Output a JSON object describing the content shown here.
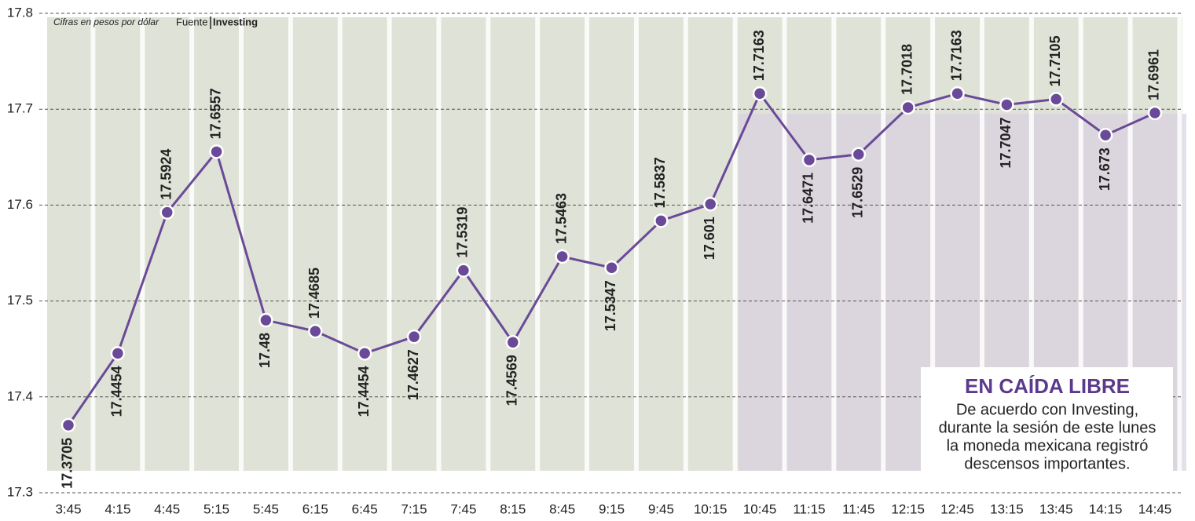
{
  "chart_data": {
    "type": "line",
    "subtitle": "Cifras en pesos por dólar",
    "source_label": "Fuente",
    "source": "Investing",
    "categories": [
      "3:45",
      "4:15",
      "4:45",
      "5:15",
      "5:45",
      "6:15",
      "6:45",
      "7:15",
      "7:45",
      "8:15",
      "8:45",
      "9:15",
      "9:45",
      "10:15",
      "10:45",
      "11:15",
      "11:45",
      "12:15",
      "12:45",
      "13:15",
      "13:45",
      "14:15",
      "14:45"
    ],
    "series": [
      {
        "color": "#6a4a98",
        "values": [
          17.3705,
          17.4454,
          17.5924,
          17.6557,
          17.48,
          17.4685,
          17.4454,
          17.4627,
          17.5319,
          17.4569,
          17.5463,
          17.5347,
          17.5837,
          17.601,
          17.7163,
          17.6471,
          17.6529,
          17.7018,
          17.7163,
          17.7047,
          17.7105,
          17.673,
          17.6961
        ]
      }
    ],
    "ylim": [
      17.3,
      17.8
    ],
    "yticks": [
      17.3,
      17.4,
      17.5,
      17.6,
      17.7,
      17.8
    ],
    "grid": true,
    "annotation": {
      "title": "EN CAÍDA LIBRE",
      "lines": [
        "De acuerdo con Investing,",
        "durante la sesión de este lunes",
        "la moneda mexicana registró",
        "descensos importantes."
      ]
    }
  }
}
